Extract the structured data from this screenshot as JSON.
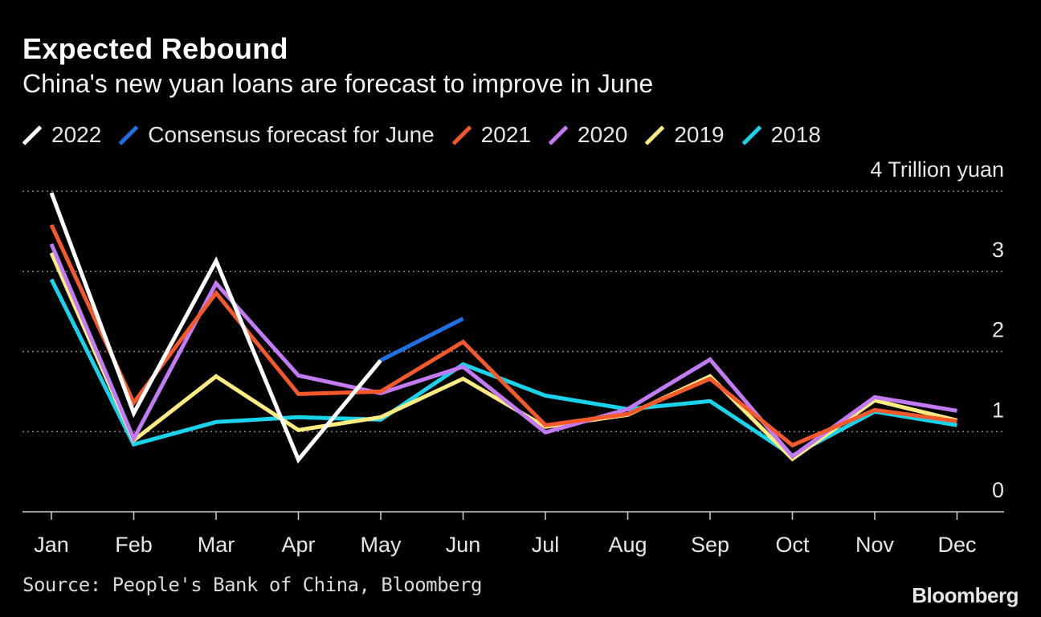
{
  "header": {
    "title": "Expected Rebound",
    "subtitle": "China's new yuan loans are forecast to improve in June"
  },
  "footer": {
    "source": "Source: People's Bank of China, Bloomberg",
    "brand": "Bloomberg"
  },
  "chart_data": {
    "type": "line",
    "ylabel": "Trillion yuan",
    "ylim": [
      0,
      4
    ],
    "yticks": [
      {
        "value": 4,
        "label": "4 Trillion yuan"
      },
      {
        "value": 3,
        "label": "3"
      },
      {
        "value": 2,
        "label": "2"
      },
      {
        "value": 1,
        "label": "1"
      },
      {
        "value": 0,
        "label": "0"
      }
    ],
    "grid": true,
    "legend": "top-left",
    "categories": [
      "Jan",
      "Feb",
      "Mar",
      "Apr",
      "May",
      "Jun",
      "Jul",
      "Aug",
      "Sep",
      "Oct",
      "Nov",
      "Dec"
    ],
    "series": [
      {
        "name": "2022",
        "color": "#ffffff",
        "values": [
          3.98,
          1.23,
          3.13,
          0.65,
          1.89,
          null,
          null,
          null,
          null,
          null,
          null,
          null
        ]
      },
      {
        "name": "Consensus forecast for June",
        "color": "#1f6fe5",
        "values": [
          null,
          null,
          null,
          null,
          1.89,
          2.41,
          null,
          null,
          null,
          null,
          null,
          null
        ]
      },
      {
        "name": "2021",
        "color": "#f4592b",
        "values": [
          3.58,
          1.36,
          2.73,
          1.47,
          1.5,
          2.12,
          1.08,
          1.22,
          1.66,
          0.83,
          1.27,
          1.13
        ]
      },
      {
        "name": "2020",
        "color": "#c27af5",
        "values": [
          3.34,
          0.91,
          2.85,
          1.7,
          1.48,
          1.81,
          0.99,
          1.28,
          1.9,
          0.69,
          1.43,
          1.26
        ]
      },
      {
        "name": "2019",
        "color": "#ffec80",
        "values": [
          3.23,
          0.89,
          1.69,
          1.02,
          1.18,
          1.66,
          1.06,
          1.21,
          1.69,
          0.66,
          1.39,
          1.14
        ]
      },
      {
        "name": "2018",
        "color": "#19d3ec",
        "values": [
          2.9,
          0.84,
          1.12,
          1.18,
          1.15,
          1.84,
          1.45,
          1.28,
          1.38,
          0.7,
          1.25,
          1.08
        ]
      }
    ]
  }
}
